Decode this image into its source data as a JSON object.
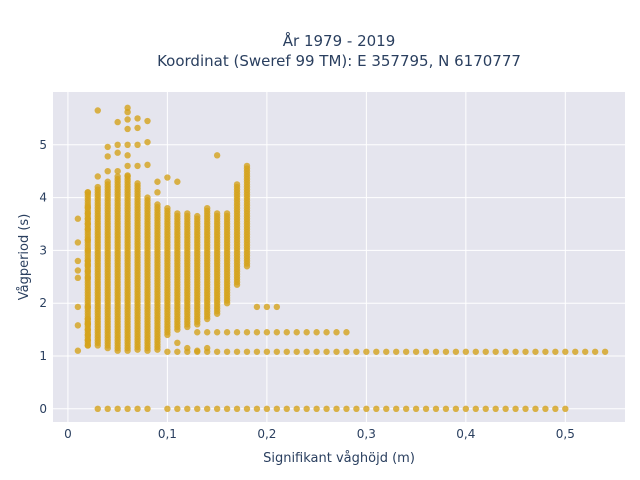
{
  "chart_data": {
    "type": "scatter",
    "title_line1": "År 1979 - 2019",
    "title_line2": "Koordinat (Sweref 99 TM): E 357795, N 6170777",
    "xlabel": "Signifikant våghöjd (m)",
    "ylabel": "Vågperiod (s)",
    "xlim": [
      -0.015,
      0.56
    ],
    "ylim": [
      -0.25,
      6.0
    ],
    "x_ticks": [
      0,
      0.1,
      0.2,
      0.3,
      0.4,
      0.5
    ],
    "x_tick_labels": [
      "0",
      "0,1",
      "0,2",
      "0,3",
      "0,4",
      "0,5"
    ],
    "y_ticks": [
      0,
      1,
      2,
      3,
      4,
      5
    ],
    "y_tick_labels": [
      "0",
      "1",
      "2",
      "3",
      "4",
      "5"
    ],
    "grid": true,
    "marker_color": "#d4a21c",
    "plot_bg": "#e5e5ee",
    "points": [
      {
        "x": 0.01,
        "y": 1.1
      },
      {
        "x": 0.01,
        "y": 1.58
      },
      {
        "x": 0.01,
        "y": 1.93
      },
      {
        "x": 0.01,
        "y": 2.48
      },
      {
        "x": 0.01,
        "y": 2.62
      },
      {
        "x": 0.01,
        "y": 2.8
      },
      {
        "x": 0.01,
        "y": 3.15
      },
      {
        "x": 0.01,
        "y": 3.6
      },
      {
        "x": 0.02,
        "y": 1.62
      },
      {
        "x": 0.02,
        "y": 1.93
      },
      {
        "x": 0.02,
        "y": 2.48
      },
      {
        "x": 0.02,
        "y": 2.72
      },
      {
        "x": 0.02,
        "y": 3.0
      },
      {
        "x": 0.02,
        "y": 3.5
      },
      {
        "x": 0.02,
        "y": 3.82
      },
      {
        "x": 0.02,
        "y": 1.2
      },
      {
        "x": 0.02,
        "y": 1.3
      },
      {
        "x": 0.02,
        "y": 1.4
      },
      {
        "x": 0.02,
        "y": 1.5
      },
      {
        "x": 0.02,
        "y": 1.6
      },
      {
        "x": 0.02,
        "y": 1.7
      },
      {
        "x": 0.02,
        "y": 2.6
      },
      {
        "x": 0.02,
        "y": 2.8
      },
      {
        "x": 0.02,
        "y": 3.2
      },
      {
        "x": 0.02,
        "y": 3.4
      },
      {
        "x": 0.02,
        "y": 3.6
      },
      {
        "x": 0.02,
        "y": 3.7
      },
      {
        "x": 0.02,
        "y": 4.1
      },
      {
        "x": 0.03,
        "y": 4.4
      },
      {
        "x": 0.03,
        "y": 5.65
      },
      {
        "x": 0.04,
        "y": 4.5
      },
      {
        "x": 0.04,
        "y": 4.78
      },
      {
        "x": 0.04,
        "y": 4.96
      },
      {
        "x": 0.05,
        "y": 4.5
      },
      {
        "x": 0.05,
        "y": 4.85
      },
      {
        "x": 0.05,
        "y": 5.0
      },
      {
        "x": 0.05,
        "y": 5.43
      },
      {
        "x": 0.06,
        "y": 4.42
      },
      {
        "x": 0.06,
        "y": 4.6
      },
      {
        "x": 0.06,
        "y": 4.8
      },
      {
        "x": 0.06,
        "y": 5.0
      },
      {
        "x": 0.06,
        "y": 5.3
      },
      {
        "x": 0.06,
        "y": 5.48
      },
      {
        "x": 0.06,
        "y": 5.62
      },
      {
        "x": 0.06,
        "y": 5.7
      },
      {
        "x": 0.07,
        "y": 4.6
      },
      {
        "x": 0.07,
        "y": 5.0
      },
      {
        "x": 0.07,
        "y": 5.32
      },
      {
        "x": 0.07,
        "y": 5.5
      },
      {
        "x": 0.08,
        "y": 4.62
      },
      {
        "x": 0.08,
        "y": 5.05
      },
      {
        "x": 0.08,
        "y": 5.45
      },
      {
        "x": 0.09,
        "y": 4.1
      },
      {
        "x": 0.09,
        "y": 4.3
      },
      {
        "x": 0.1,
        "y": 4.38
      },
      {
        "x": 0.11,
        "y": 4.3
      },
      {
        "x": 0.15,
        "y": 4.8
      },
      {
        "x": 0.11,
        "y": 1.25
      },
      {
        "x": 0.12,
        "y": 1.15
      },
      {
        "x": 0.13,
        "y": 1.1
      },
      {
        "x": 0.14,
        "y": 1.15
      },
      {
        "x": 0.19,
        "y": 1.93
      },
      {
        "x": 0.2,
        "y": 1.93
      },
      {
        "x": 0.21,
        "y": 1.93
      },
      {
        "x": 0.13,
        "y": 1.45
      },
      {
        "x": 0.14,
        "y": 1.45
      },
      {
        "x": 0.15,
        "y": 1.45
      },
      {
        "x": 0.16,
        "y": 1.45
      },
      {
        "x": 0.17,
        "y": 1.45
      },
      {
        "x": 0.18,
        "y": 1.45
      },
      {
        "x": 0.19,
        "y": 1.45
      },
      {
        "x": 0.2,
        "y": 1.45
      },
      {
        "x": 0.21,
        "y": 1.45
      },
      {
        "x": 0.22,
        "y": 1.45
      },
      {
        "x": 0.23,
        "y": 1.45
      },
      {
        "x": 0.24,
        "y": 1.45
      },
      {
        "x": 0.25,
        "y": 1.45
      },
      {
        "x": 0.26,
        "y": 1.45
      },
      {
        "x": 0.27,
        "y": 1.45
      },
      {
        "x": 0.28,
        "y": 1.45
      }
    ],
    "vertical_ranges": [
      {
        "x": 0.02,
        "y0": 1.2,
        "y1": 4.1
      },
      {
        "x": 0.03,
        "y0": 1.2,
        "y1": 4.2
      },
      {
        "x": 0.04,
        "y0": 1.15,
        "y1": 4.3
      },
      {
        "x": 0.05,
        "y0": 1.1,
        "y1": 4.4
      },
      {
        "x": 0.06,
        "y0": 1.1,
        "y1": 4.4
      },
      {
        "x": 0.07,
        "y0": 1.12,
        "y1": 4.3
      },
      {
        "x": 0.08,
        "y0": 1.1,
        "y1": 4.0
      },
      {
        "x": 0.09,
        "y0": 1.12,
        "y1": 3.9
      },
      {
        "x": 0.1,
        "y0": 1.4,
        "y1": 3.82
      },
      {
        "x": 0.11,
        "y0": 1.5,
        "y1": 3.7
      },
      {
        "x": 0.12,
        "y0": 1.55,
        "y1": 3.7
      },
      {
        "x": 0.13,
        "y0": 1.6,
        "y1": 3.65
      },
      {
        "x": 0.14,
        "y0": 1.7,
        "y1": 3.8
      },
      {
        "x": 0.15,
        "y0": 1.8,
        "y1": 3.7
      },
      {
        "x": 0.16,
        "y0": 2.0,
        "y1": 3.7
      },
      {
        "x": 0.17,
        "y0": 2.35,
        "y1": 4.25
      },
      {
        "x": 0.18,
        "y0": 2.7,
        "y1": 4.6
      }
    ],
    "horizontal_rows": [
      {
        "y": 1.08,
        "x0": 0.1,
        "x1": 0.54,
        "step": 0.01
      },
      {
        "y": 0.0,
        "x0": 0.03,
        "x1": 0.08,
        "step": 0.01
      },
      {
        "y": 0.0,
        "x0": 0.1,
        "x1": 0.5,
        "step": 0.01
      }
    ]
  }
}
